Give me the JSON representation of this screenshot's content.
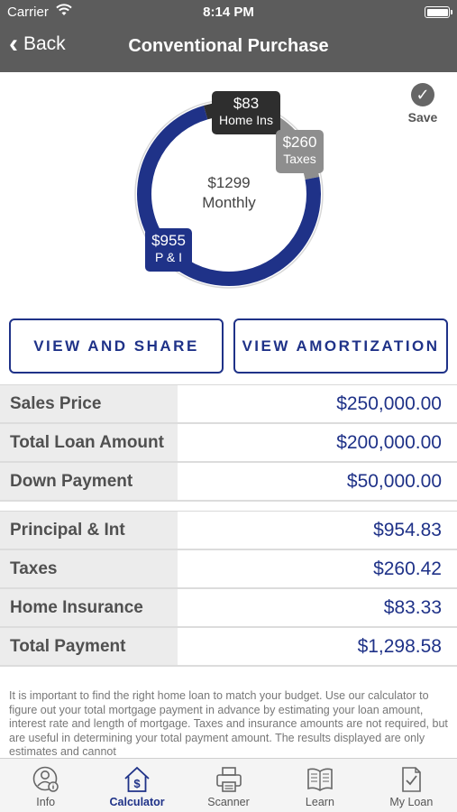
{
  "status_bar": {
    "carrier": "Carrier",
    "time": "8:14 PM"
  },
  "nav": {
    "back_label": "Back",
    "title": "Conventional Purchase"
  },
  "save_label": "Save",
  "chart_data": {
    "type": "pie",
    "style": "donut",
    "center_amount": "$1299",
    "center_label": "Monthly",
    "slices": [
      {
        "name": "P & I",
        "label_amount": "$955",
        "value": 954.83,
        "color": "#1f3288"
      },
      {
        "name": "Taxes",
        "label_amount": "$260",
        "value": 260.42,
        "color": "#8e8e8e"
      },
      {
        "name": "Home Ins",
        "label_amount": "$83",
        "value": 83.33,
        "color": "#2e2e2e"
      }
    ]
  },
  "buttons": {
    "view_share": "VIEW AND SHARE",
    "view_amortization": "VIEW AMORTIZATION"
  },
  "summary_rows": [
    {
      "label": "Sales Price",
      "value": "$250,000.00"
    },
    {
      "label": "Total Loan Amount",
      "value": "$200,000.00"
    },
    {
      "label": "Down Payment",
      "value": "$50,000.00"
    }
  ],
  "payment_rows": [
    {
      "label": "Principal & Int",
      "value": "$954.83"
    },
    {
      "label": "Taxes",
      "value": "$260.42"
    },
    {
      "label": "Home Insurance",
      "value": "$83.33"
    },
    {
      "label": "Total Payment",
      "value": "$1,298.58"
    }
  ],
  "disclaimer": "It is important to find the right home loan to match your budget. Use our calculator to figure out your total mortgage payment in advance by estimating your loan amount, interest rate and length of mortgage. Taxes and insurance amounts are not required, but are useful in determining your total payment amount.  The results displayed are only estimates and cannot",
  "tabs": [
    {
      "label": "Info",
      "icon": "info-person-icon"
    },
    {
      "label": "Calculator",
      "icon": "calculator-house-icon",
      "active": true
    },
    {
      "label": "Scanner",
      "icon": "printer-icon"
    },
    {
      "label": "Learn",
      "icon": "book-icon"
    },
    {
      "label": "My Loan",
      "icon": "document-check-icon"
    }
  ],
  "colors": {
    "nav_bg": "#5c5c5c",
    "accent": "#1f3288",
    "row_label_bg": "#ececec"
  }
}
